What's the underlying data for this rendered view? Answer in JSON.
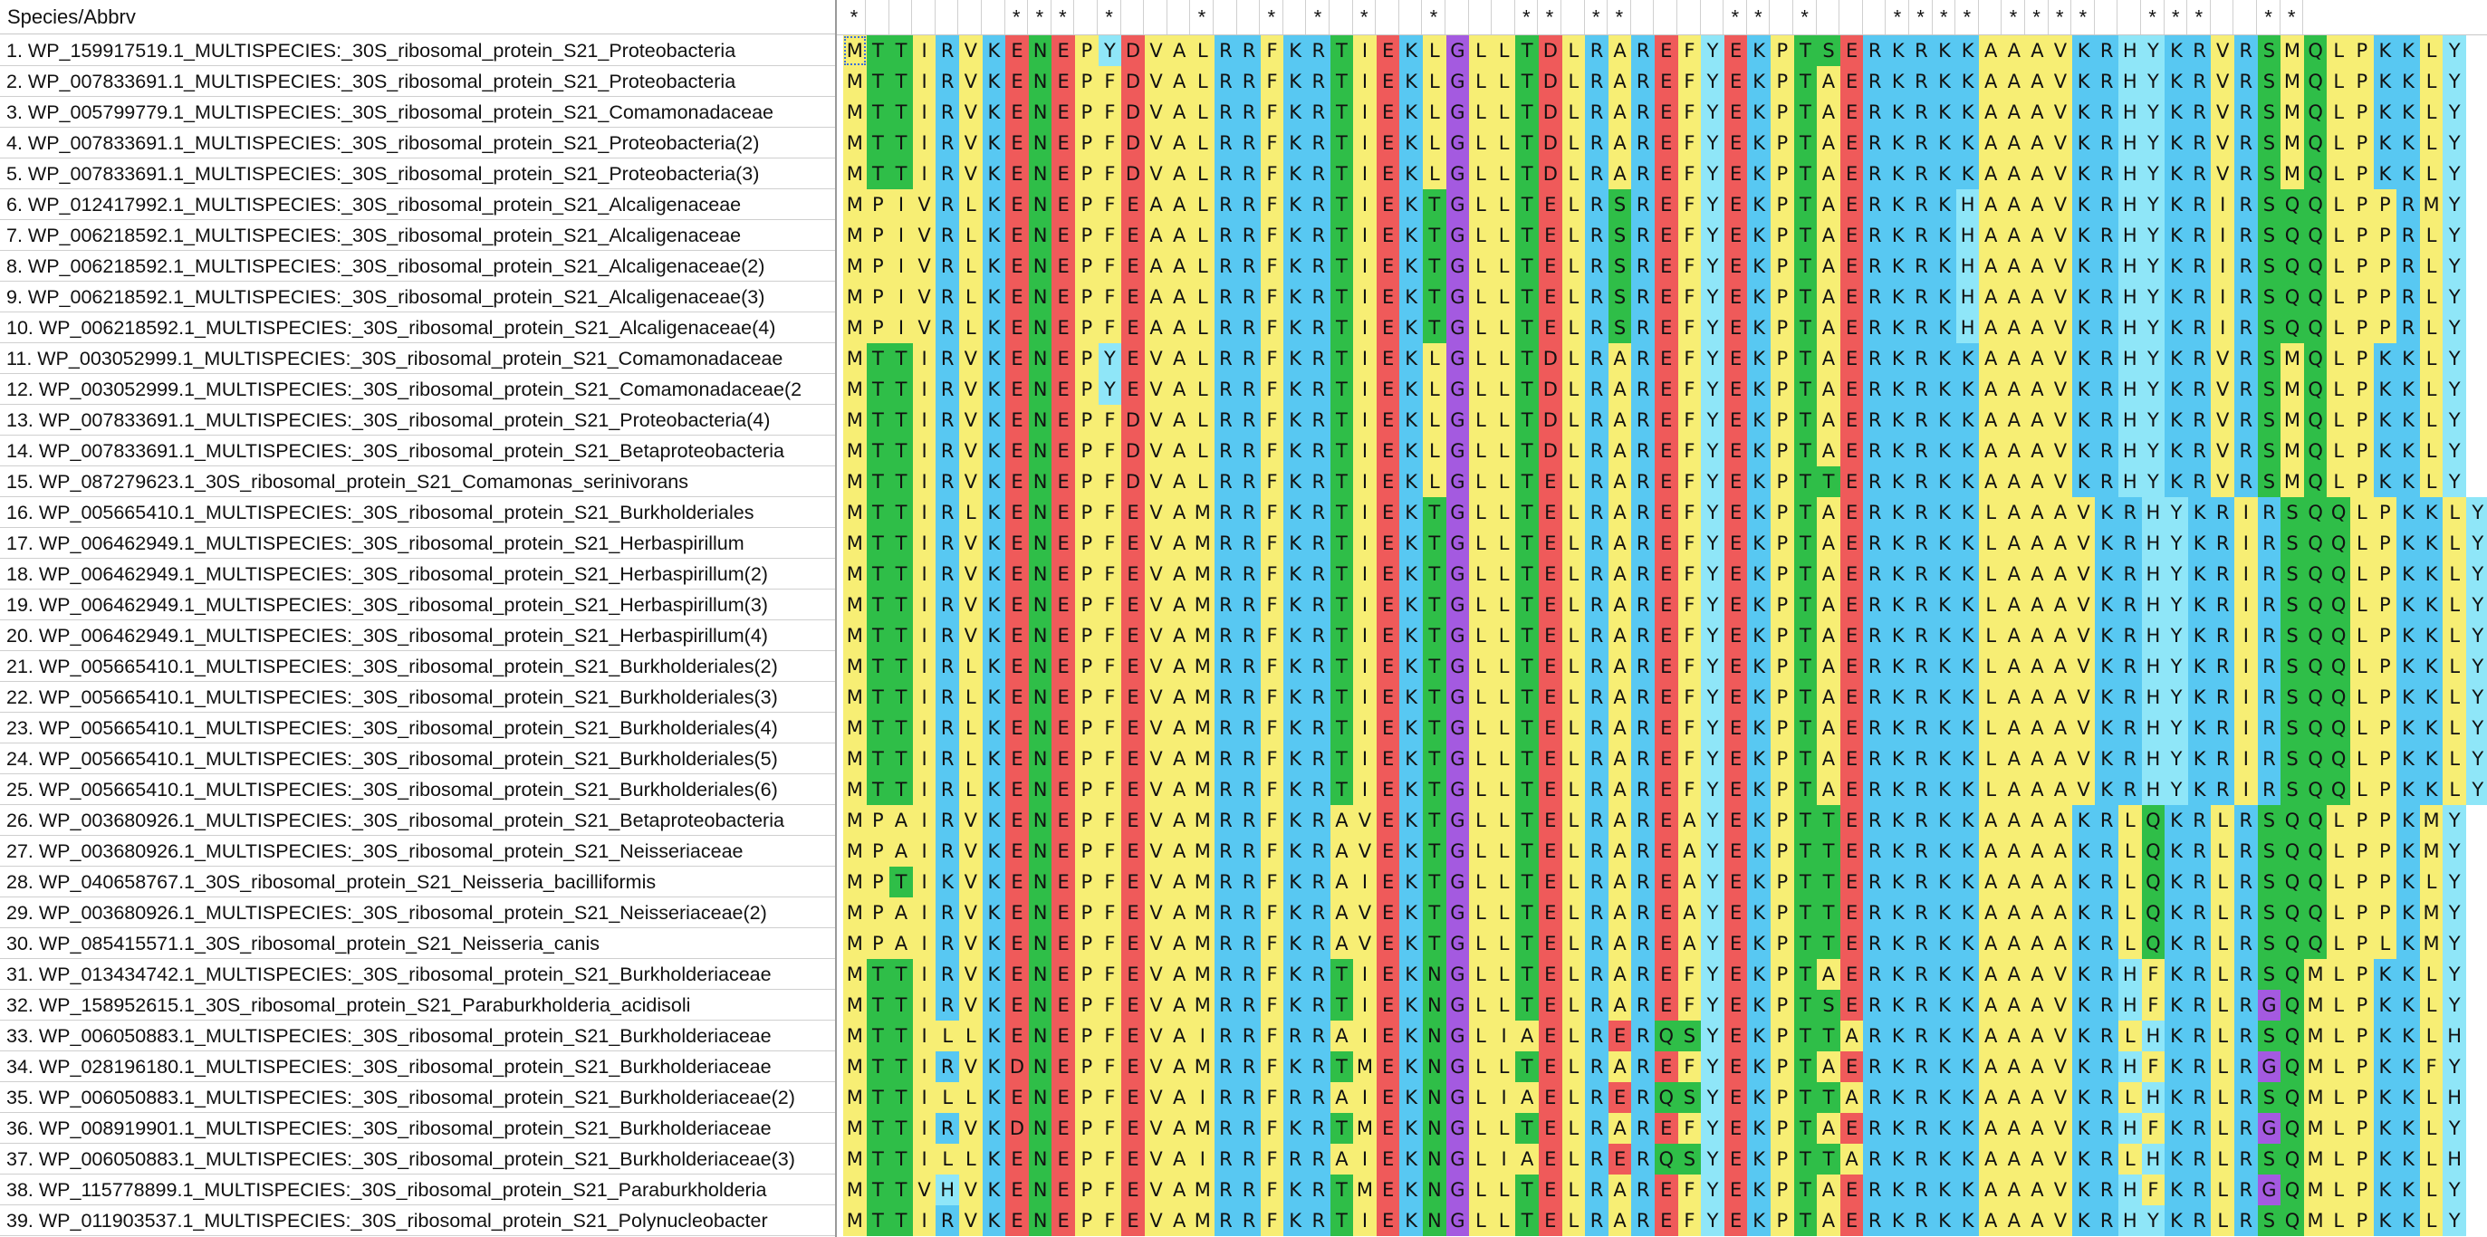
{
  "header": {
    "species_label": "Species/Abbrv"
  },
  "conservation": "*      *** *   *  * * *  *   ** **    ** *   **** ****  ***  **   ** *  ** ",
  "colors": {
    "A": "#f7ee74",
    "V": "#f7ee74",
    "L": "#f7ee74",
    "I": "#f7ee74",
    "M": "#f7ee74",
    "F": "#f7ee74",
    "W": "#f7ee74",
    "C": "#f7ee74",
    "P": "#f7ee74",
    "K": "#58c8f2",
    "R": "#58c8f2",
    "H": "#8fe6f8",
    "E": "#ef5a5a",
    "D": "#ef5a5a",
    "T": "#2fbe48",
    "S": "#2fbe48",
    "N": "#2fbe48",
    "Q": "#2fbe48",
    "G": "#a45ae0",
    "Y": "#8fe6f8"
  },
  "rows": [
    {
      "name": "1. WP_159917519.1_MULTISPECIES:_30S_ribosomal_protein_S21_Proteobacteria",
      "seq": "MTTIRVKENEPYDVALRRFKRTIEKLGLLTDLRAREFYEKPTSERKRKKAAAVKRHYKRVRSMQLPKKLY"
    },
    {
      "name": "2. WP_007833691.1_MULTISPECIES:_30S_ribosomal_protein_S21_Proteobacteria",
      "seq": "MTTIRVKENEPFDVALRRFKRTIEKLGLLTDLRAREFYEKPTAERKRKKAAAVKRHYKRVRSMQLPKKLY"
    },
    {
      "name": "3. WP_005799779.1_MULTISPECIES:_30S_ribosomal_protein_S21_Comamonadaceae",
      "seq": "MTTIRVKENEPFDVALRRFKRTIEKLGLLTDLRAREFYEKPTAERKRKKAAAVKRHYKRVRSMQLPKKLY"
    },
    {
      "name": "4. WP_007833691.1_MULTISPECIES:_30S_ribosomal_protein_S21_Proteobacteria(2)",
      "seq": "MTTIRVKENEPFDVALRRFKRTIEKLGLLTDLRAREFYEKPTAERKRKKAAAVKRHYKRVRSMQLPKKLY"
    },
    {
      "name": "5. WP_007833691.1_MULTISPECIES:_30S_ribosomal_protein_S21_Proteobacteria(3)",
      "seq": "MTTIRVKENEPFDVALRRFKRTIEKLGLLTDLRAREFYEKPTAERKRKKAAAVKRHYKRVRSMQLPKKLY"
    },
    {
      "name": "6. WP_012417992.1_MULTISPECIES:_30S_ribosomal_protein_S21_Alcaligenaceae",
      "seq": "MPIVRLKENEPFEAALRRFKRTIEKTGLLTELRSREFYEKPTAERKRKHAAAVKRHYKRIRSQQLPPRMY"
    },
    {
      "name": "7. WP_006218592.1_MULTISPECIES:_30S_ribosomal_protein_S21_Alcaligenaceae",
      "seq": "MPIVRLKENEPFEAALRRFKRTIEKTGLLTELRSREFYEKPTAERKRKHAAAVKRHYKRIRSQQLPPRLY"
    },
    {
      "name": "8. WP_006218592.1_MULTISPECIES:_30S_ribosomal_protein_S21_Alcaligenaceae(2)",
      "seq": "MPIVRLKENEPFEAALRRFKRTIEKTGLLTELRSREFYEKPTAERKRKHAAAVKRHYKRIRSQQLPPRLY"
    },
    {
      "name": "9. WP_006218592.1_MULTISPECIES:_30S_ribosomal_protein_S21_Alcaligenaceae(3)",
      "seq": "MPIVRLKENEPFEAALRRFKRTIEKTGLLTELRSREFYEKPTAERKRKHAAAVKRHYKRIRSQQLPPRLY"
    },
    {
      "name": "10. WP_006218592.1_MULTISPECIES:_30S_ribosomal_protein_S21_Alcaligenaceae(4)",
      "seq": "MPIVRLKENEPFEAALRRFKRTIEKTGLLTELRSREFYEKPTAERKRKHAAAVKRHYKRIRSQQLPPRLY"
    },
    {
      "name": "11. WP_003052999.1_MULTISPECIES:_30S_ribosomal_protein_S21_Comamonadaceae",
      "seq": "MTTIRVKENEPYEVALRRFKRTIEKLGLLTDLRAREFYEKPTAERKRKKAAAVKRHYKRVRSMQLPKKLY"
    },
    {
      "name": "12. WP_003052999.1_MULTISPECIES:_30S_ribosomal_protein_S21_Comamonadaceae(2",
      "seq": "MTTIRVKENEPYEVALRRFKRTIEKLGLLTDLRAREFYEKPTAERKRKKAAAVKRHYKRVRSMQLPKKLY"
    },
    {
      "name": "13. WP_007833691.1_MULTISPECIES:_30S_ribosomal_protein_S21_Proteobacteria(4)",
      "seq": "MTTIRVKENEPFDVALRRFKRTIEKLGLLTDLRAREFYEKPTAERKRKKAAAVKRHYKRVRSMQLPKKLY"
    },
    {
      "name": "14. WP_007833691.1_MULTISPECIES:_30S_ribosomal_protein_S21_Betaproteobacteria",
      "seq": "MTTIRVKENEPFDVALRRFKRTIEKLGLLTDLRAREFYEKPTAERKRKKAAAVKRHYKRVRSMQLPKKLY"
    },
    {
      "name": "15. WP_087279623.1_30S_ribosomal_protein_S21_Comamonas_serinivorans",
      "seq": "MTTIRVKENEPFDVALRRFKRTIEKLGLLTELRAREFYEKPTTERKRKKAAAVKRHYKRVRSMQLPKKLY"
    },
    {
      "name": "16. WP_005665410.1_MULTISPECIES:_30S_ribosomal_protein_S21_Burkholderiales",
      "seq": "MTTIRLKENEPFEVAMRRFKRTIEKTGLLTELRAREFYEKPTAERKRKKLAAAVKRHYKRIRSQQLPKKLY"
    },
    {
      "name": "17. WP_006462949.1_MULTISPECIES:_30S_ribosomal_protein_S21_Herbaspirillum",
      "seq": "MTTIRVKENEPFEVAMRRFKRTIEKTGLLTELRAREFYEKPTAERKRKKLAAAVKRHYKRIRSQQLPKKLY"
    },
    {
      "name": "18. WP_006462949.1_MULTISPECIES:_30S_ribosomal_protein_S21_Herbaspirillum(2)",
      "seq": "MTTIRVKENEPFEVAMRRFKRTIEKTGLLTELRAREFYEKPTAERKRKKLAAAVKRHYKRIRSQQLPKKLY"
    },
    {
      "name": "19. WP_006462949.1_MULTISPECIES:_30S_ribosomal_protein_S21_Herbaspirillum(3)",
      "seq": "MTTIRVKENEPFEVAMRRFKRTIEKTGLLTELRAREFYEKPTAERKRKKLAAAVKRHYKRIRSQQLPKKLY"
    },
    {
      "name": "20. WP_006462949.1_MULTISPECIES:_30S_ribosomal_protein_S21_Herbaspirillum(4)",
      "seq": "MTTIRVKENEPFEVAMRRFKRTIEKTGLLTELRAREFYEKPTAERKRKKLAAAVKRHYKRIRSQQLPKKLY"
    },
    {
      "name": "21. WP_005665410.1_MULTISPECIES:_30S_ribosomal_protein_S21_Burkholderiales(2)",
      "seq": "MTTIRLKENEPFEVAMRRFKRTIEKTGLLTELRAREFYEKPTAERKRKKLAAAVKRHYKRIRSQQLPKKLY"
    },
    {
      "name": "22. WP_005665410.1_MULTISPECIES:_30S_ribosomal_protein_S21_Burkholderiales(3)",
      "seq": "MTTIRLKENEPFEVAMRRFKRTIEKTGLLTELRAREFYEKPTAERKRKKLAAAVKRHYKRIRSQQLPKKLY"
    },
    {
      "name": "23. WP_005665410.1_MULTISPECIES:_30S_ribosomal_protein_S21_Burkholderiales(4)",
      "seq": "MTTIRLKENEPFEVAMRRFKRTIEKTGLLTELRAREFYEKPTAERKRKKLAAAVKRHYKRIRSQQLPKKLY"
    },
    {
      "name": "24. WP_005665410.1_MULTISPECIES:_30S_ribosomal_protein_S21_Burkholderiales(5)",
      "seq": "MTTIRLKENEPFEVAMRRFKRTIEKTGLLTELRAREFYEKPTAERKRKKLAAAVKRHYKRIRSQQLPKKLY"
    },
    {
      "name": "25. WP_005665410.1_MULTISPECIES:_30S_ribosomal_protein_S21_Burkholderiales(6)",
      "seq": "MTTIRLKENEPFEVAMRRFKRTIEKTGLLTELRAREFYEKPTAERKRKKLAAAVKRHYKRIRSQQLPKKLY"
    },
    {
      "name": "26. WP_003680926.1_MULTISPECIES:_30S_ribosomal_protein_S21_Betaproteobacteria",
      "seq": "MPAIRVKENEPFEVAMRRFKRAVEKTGLLTELRAREAYEKPTTERKRKKAAAAKRLQKRLRSQQLPPKMY"
    },
    {
      "name": "27. WP_003680926.1_MULTISPECIES:_30S_ribosomal_protein_S21_Neisseriaceae",
      "seq": "MPAIRVKENEPFEVAMRRFKRAVEKTGLLTELRAREAYEKPTTERKRKKAAAAKRLQKRLRSQQLPPKMY"
    },
    {
      "name": "28. WP_040658767.1_30S_ribosomal_protein_S21_Neisseria_bacilliformis",
      "seq": "MPTIKVKENEPFEVAMRRFKRAIEKTGLLTELRAREAYEKPTTERKRKKAAAAKRLQKRLRSQQLPPKLY"
    },
    {
      "name": "29. WP_003680926.1_MULTISPECIES:_30S_ribosomal_protein_S21_Neisseriaceae(2)",
      "seq": "MPAIRVKENEPFEVAMRRFKRAVEKTGLLTELRAREAYEKPTTERKRKKAAAAKRLQKRLRSQQLPPKMY"
    },
    {
      "name": "30. WP_085415571.1_30S_ribosomal_protein_S21_Neisseria_canis",
      "seq": "MPAIRVKENEPFEVAMRRFKRAVEKTGLLTELRAREAYEKPTTERKRKKAAAAKRLQKRLRSQQLPLKMY"
    },
    {
      "name": "31. WP_013434742.1_MULTISPECIES:_30S_ribosomal_protein_S21_Burkholderiaceae",
      "seq": "MTTIRVKENEPFEVAMRRFKRTIEKNGLLTELRAREFYEKPTAERKRKKAAAVKRHFKRLRSQMLPKKLY"
    },
    {
      "name": "32. WP_158952615.1_30S_ribosomal_protein_S21_Paraburkholderia_acidisoli",
      "seq": "MTTIRVKENEPFEVAMRRFKRTIEKNGLLTELRAREFYEKPTSERKRKKAAAVKRHFKRLRGQMLPKKLY"
    },
    {
      "name": "33. WP_006050883.1_MULTISPECIES:_30S_ribosomal_protein_S21_Burkholderiaceae",
      "seq": "MTTILLKENEPFEVAIRRFRRAIEKNGLIAELRERQSYEKPTTARKRKKAAAVKRLHKRLRSQMLPKKLH"
    },
    {
      "name": "34. WP_028196180.1_MULTISPECIES:_30S_ribosomal_protein_S21_Burkholderiaceae",
      "seq": "MTTIRVKDNEPFEVAMRRFKRTMEKNGLLTELRAREFYEKPTAERKRKKAAAVKRHFKRLRGQMLPKKFY"
    },
    {
      "name": "35. WP_006050883.1_MULTISPECIES:_30S_ribosomal_protein_S21_Burkholderiaceae(2)",
      "seq": "MTTILLKENEPFEVAIRRFRRAIEKNGLIAELRERQSYEKPTTARKRKKAAAVKRLHKRLRSQMLPKKLH"
    },
    {
      "name": "36. WP_008919901.1_MULTISPECIES:_30S_ribosomal_protein_S21_Burkholderiaceae",
      "seq": "MTTIRVKDNEPFEVAMRRFKRTMEKNGLLTELRAREFYEKPTAERKRKKAAAVKRHFKRLRGQMLPKKLY"
    },
    {
      "name": "37. WP_006050883.1_MULTISPECIES:_30S_ribosomal_protein_S21_Burkholderiaceae(3)",
      "seq": "MTTILLKENEPFEVAIRRFRRAIEKNGLIAELRERQSYEKPTTARKRKKAAAVKRLHKRLRSQMLPKKLH"
    },
    {
      "name": "38. WP_115778899.1_MULTISPECIES:_30S_ribosomal_protein_S21_Paraburkholderia",
      "seq": "MTTVHVKENEPFEVAMRRFKRTMEKNGLLTELRAREFYEKPTAERKRKKAAAVKRHFKRLRGQMLPKKLY"
    },
    {
      "name": "39. WP_011903537.1_MULTISPECIES:_30S_ribosomal_protein_S21_Polynucleobacter",
      "seq": "MTTIRVKENEPFEVAMRRFKRTIEKNGLLTELRAREFYEKPTAERKRKKAAAVKRHYKRLRSQMLPKKLY"
    }
  ]
}
